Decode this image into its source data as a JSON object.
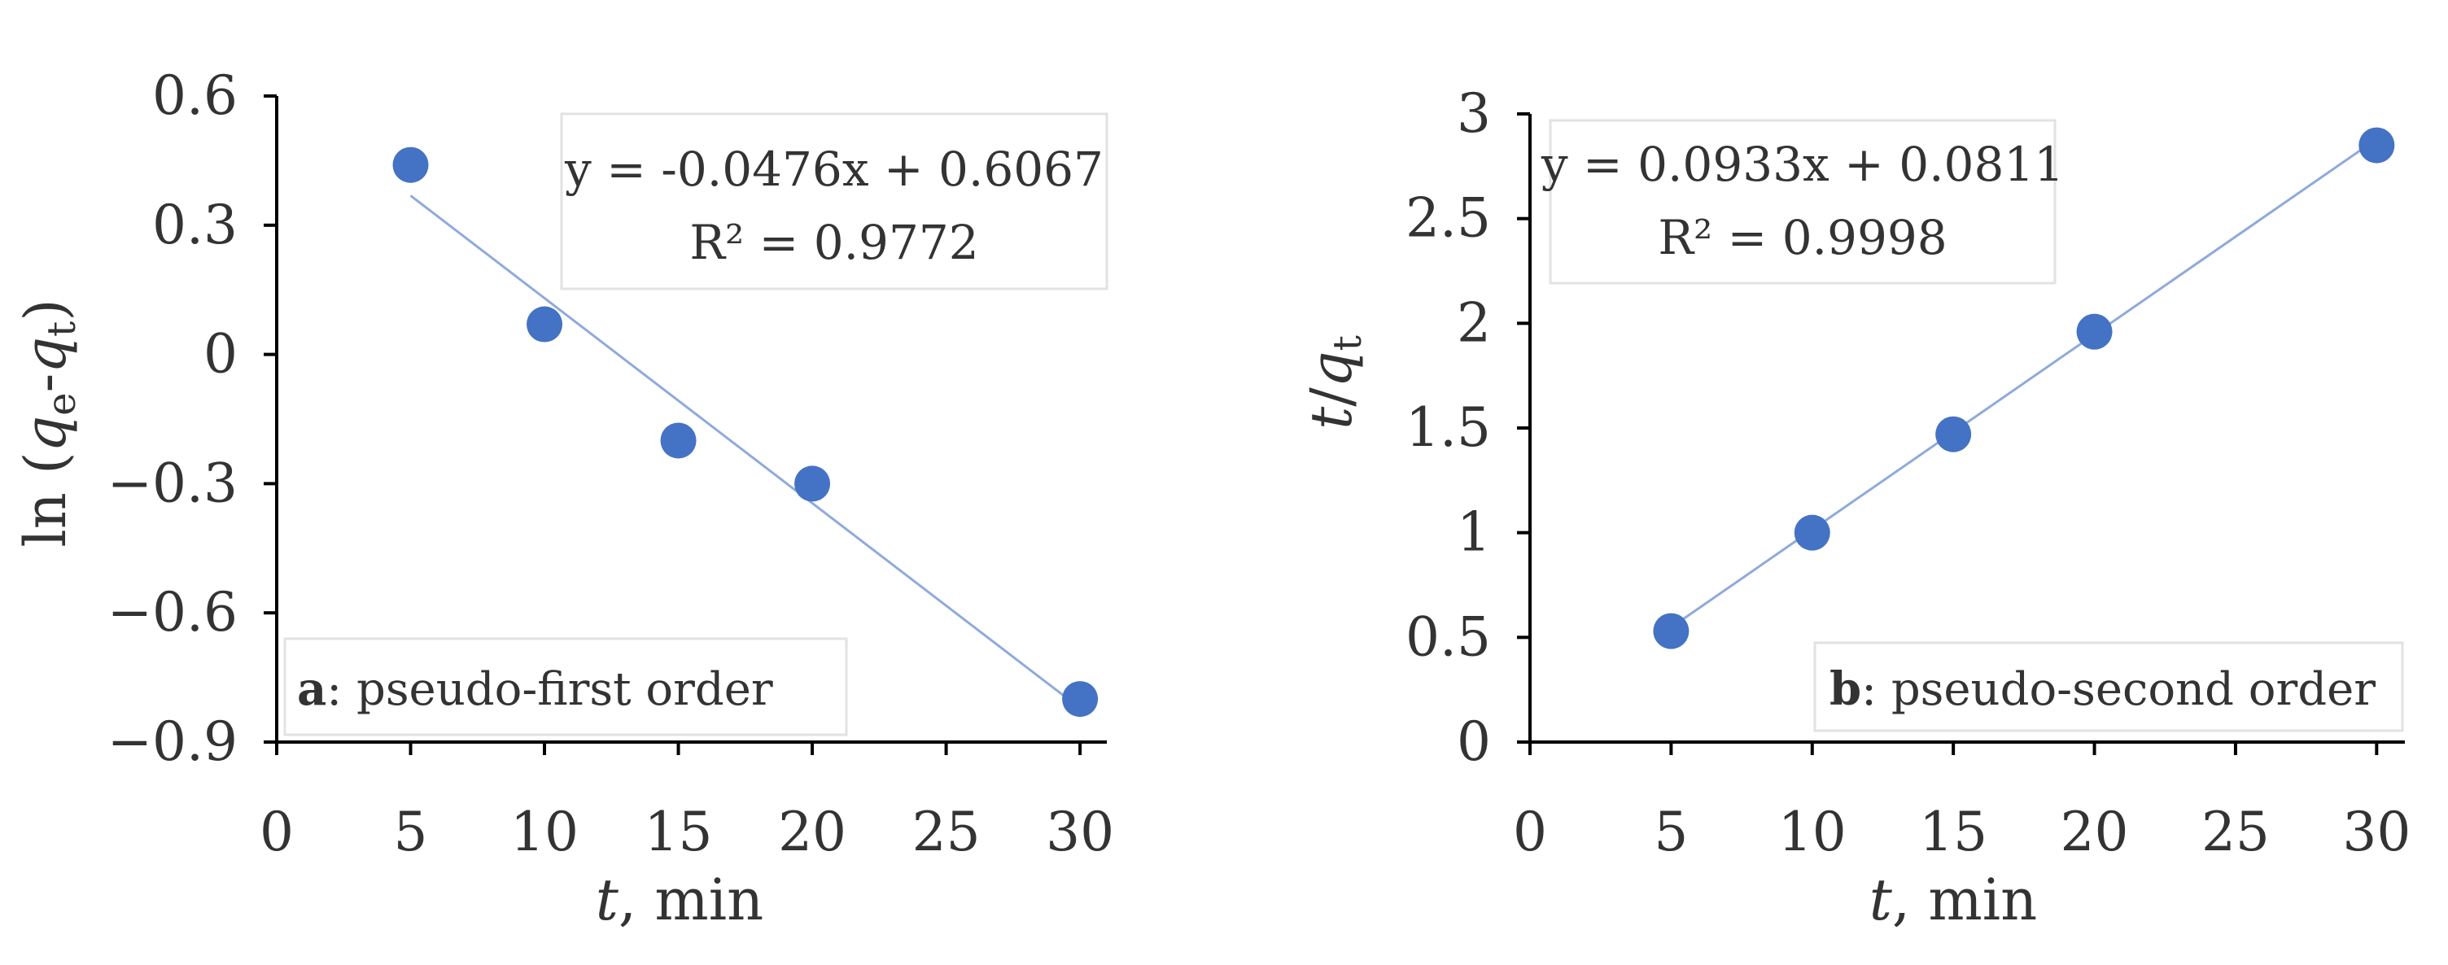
{
  "colors": {
    "marker": "#4472C4",
    "trendline": "#8FAADC",
    "axis": "#000000",
    "text": "#333333"
  },
  "chart_data": [
    {
      "type": "scatter",
      "panel_label": "a",
      "caption": ": pseudo-first order",
      "equation": "y = -0.0476x + 0.6067",
      "r_squared": "R² = 0.9772",
      "xlabel": {
        "italic": "t",
        "rest": ", min"
      },
      "ylabel": {
        "pre": "ln (",
        "v1": "q",
        "s1": "e",
        "dash": "-",
        "v2": "q",
        "s2": "t",
        "post": ")"
      },
      "xlim": [
        0,
        31
      ],
      "ylim": [
        -0.9,
        0.6
      ],
      "xticks": [
        0,
        5,
        10,
        15,
        20,
        25,
        30
      ],
      "yticks": [
        0.6,
        0.3,
        0,
        -0.3,
        -0.6,
        -0.9
      ],
      "ytick_labels": [
        "0.6",
        "0.3",
        "0",
        "−0.3",
        "−0.6",
        "−0.9"
      ],
      "series": [
        {
          "x": [
            5,
            10,
            15,
            20,
            30
          ],
          "y": [
            0.44,
            0.07,
            -0.2,
            -0.3,
            -0.8
          ]
        }
      ],
      "trendline": {
        "slope": -0.0476,
        "intercept": 0.6067,
        "x_range": [
          5,
          30
        ]
      }
    },
    {
      "type": "scatter",
      "panel_label": "b",
      "caption": ": pseudo-second order",
      "equation": "y = 0.0933x + 0.0811",
      "r_squared": "R² = 0.9998",
      "xlabel": {
        "italic": "t",
        "rest": ", min"
      },
      "ylabel": {
        "v1": "t",
        "slash": "/",
        "v2": "q",
        "s2": "t"
      },
      "xlim": [
        0,
        31
      ],
      "ylim": [
        0,
        3
      ],
      "xticks": [
        0,
        5,
        10,
        15,
        20,
        25,
        30
      ],
      "yticks": [
        0,
        0.5,
        1,
        1.5,
        2,
        2.5,
        3
      ],
      "ytick_labels": [
        "0",
        "0.5",
        "1",
        "1.5",
        "2",
        "2.5",
        "3"
      ],
      "series": [
        {
          "x": [
            5,
            10,
            15,
            20,
            30
          ],
          "y": [
            0.53,
            1.0,
            1.47,
            1.96,
            2.85
          ]
        }
      ],
      "trendline": {
        "slope": 0.0933,
        "intercept": 0.0811,
        "x_range": [
          5,
          30
        ]
      }
    }
  ]
}
